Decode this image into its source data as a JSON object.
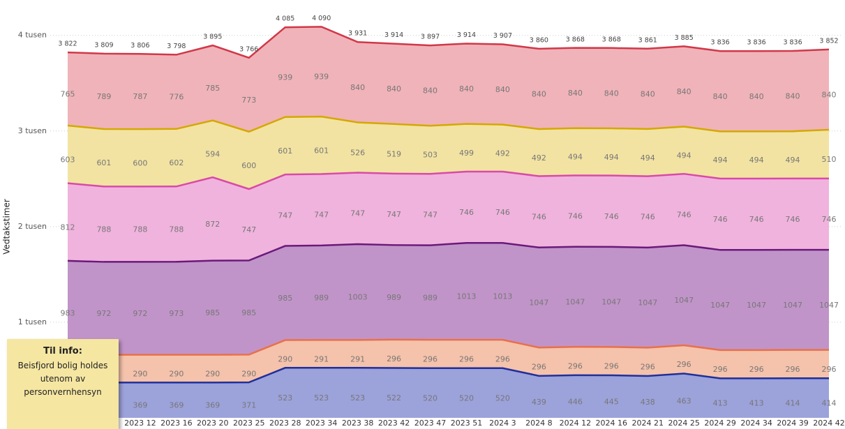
{
  "chart_data": {
    "type": "stacked_area",
    "y_label": "Vedtakstimer",
    "note_title": "Til info:",
    "note_text": "Beisfjord bolig holdes utenom av personvernhensyn",
    "categories": [
      null,
      null,
      "2023 12",
      "2023 16",
      "2023 20",
      "2023 25",
      "2023 28",
      "2023 34",
      "2023 38",
      "2023 42",
      "2023 47",
      "2023 51",
      "2024 3",
      "2024 8",
      "2024 12",
      "2024 16",
      "2024 21",
      "2024 25",
      "2024 29",
      "2024 34",
      "2024 39",
      "2024 42"
    ],
    "series": [
      {
        "color": "#9ca2da",
        "line_color": "#1f2f9a",
        "values": [
          369,
          369,
          369,
          369,
          369,
          371,
          523,
          523,
          523,
          522,
          520,
          520,
          520,
          439,
          446,
          445,
          438,
          463,
          413,
          413,
          414,
          414
        ]
      },
      {
        "color": "#f5c2ab",
        "line_color": "#e8704a",
        "values": [
          290,
          290,
          290,
          290,
          290,
          290,
          290,
          291,
          291,
          296,
          296,
          296,
          296,
          296,
          296,
          296,
          296,
          296,
          296,
          296,
          296,
          296
        ]
      },
      {
        "color": "#c194c9",
        "line_color": "#6a1a7a",
        "values": [
          983,
          972,
          972,
          973,
          985,
          985,
          985,
          989,
          1003,
          989,
          989,
          1013,
          1013,
          1047,
          1047,
          1047,
          1047,
          1047,
          1047,
          1047,
          1047,
          1047
        ]
      },
      {
        "color": "#f0b3dd",
        "line_color": "#d84aa8",
        "values": [
          812,
          788,
          788,
          788,
          872,
          747,
          747,
          747,
          747,
          747,
          747,
          746,
          746,
          746,
          746,
          746,
          746,
          746,
          746,
          746,
          746,
          746
        ]
      },
      {
        "color": "#f2e3a2",
        "line_color": "#d4a800",
        "values": [
          603,
          601,
          600,
          602,
          594,
          600,
          601,
          601,
          526,
          519,
          503,
          499,
          492,
          492,
          494,
          494,
          494,
          494,
          494,
          494,
          494,
          510
        ]
      },
      {
        "color": "#f0b3b9",
        "line_color": "#d03848",
        "values": [
          765,
          789,
          787,
          776,
          785,
          773,
          939,
          939,
          840,
          840,
          840,
          840,
          840,
          840,
          840,
          840,
          840,
          840,
          840,
          840,
          840,
          840
        ]
      }
    ],
    "totals": {
      "values": [
        3822,
        3809,
        3806,
        3798,
        3895,
        3766,
        4085,
        4090,
        3931,
        3914,
        3897,
        3914,
        3907,
        3860,
        3868,
        3868,
        3861,
        3885,
        3836,
        3836,
        3836,
        3852
      ],
      "value_labels": [
        "3 822",
        "3 809",
        "3 806",
        "3 798",
        "3 895",
        "3 766",
        "4 085",
        "4 090",
        "3 931",
        "3 914",
        "3 897",
        "3 914",
        "3 907",
        "3 860",
        "3 868",
        "3 868",
        "3 861",
        "3 885",
        "3 836",
        "3 836",
        "3 836",
        "3 852"
      ]
    },
    "ylim": [
      0,
      4370
    ],
    "yticks": [
      {
        "value": 1000,
        "label": "1 tusen"
      },
      {
        "value": 2000,
        "label": "2 tusen"
      },
      {
        "value": 3000,
        "label": "3 tusen"
      },
      {
        "value": 4000,
        "label": "4 tusen"
      }
    ],
    "grid": true
  }
}
